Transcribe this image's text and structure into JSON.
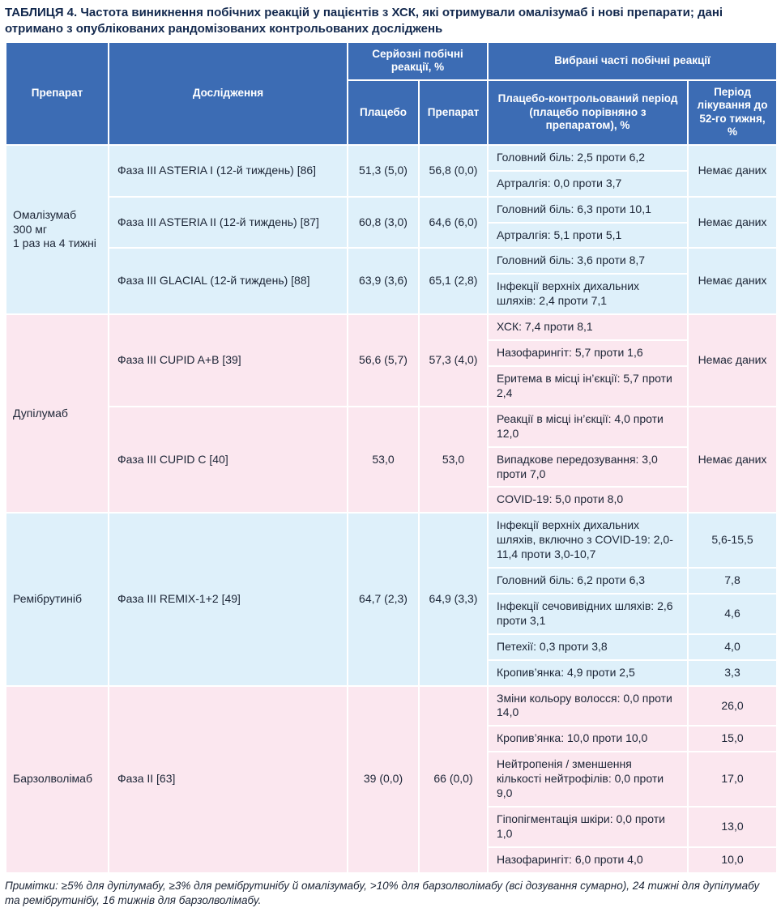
{
  "title": "ТАБЛИЦЯ 4. Частота виникнення побічних реакцій у пацієнтів з ХСК, які отримували омалізумаб і нові препарати; дані отримано з опублікованих рандомізованих контрольованих досліджень",
  "notes": "Примітки: ≥5% для дупілумабу, ≥3% для ремібрутинібу й омалізумабу, >10% для барзолволімабу (всі дозування сумарно), 24 тижні для дупілумабу та ремібрутинібу, 16 тижнів для барзолволімабу.",
  "colors": {
    "header_bg": "#3c6cb4",
    "row_blue": "#def0fa",
    "row_pink": "#fbe7ef",
    "title_text": "#13294e"
  },
  "header": {
    "drug": "Препарат",
    "study": "Дослідження",
    "serious": "Серйозні побічні реакції, %",
    "placebo": "Плацебо",
    "drug_value": "Препарат",
    "selected": "Вибрані часті побічні реакції",
    "placebo_period": "Плацебо-контрольований період (плацебо порівняно з препаратом), %",
    "treatment_period": "Період лікування до 52-го тижня, %"
  },
  "groups": [
    {
      "drug": "Омалізумаб\n300 мг\n1 раз на 4 тижні",
      "tint": "blue",
      "studies": [
        {
          "study": "Фаза III ASTERIA I (12-й тиждень) [86]",
          "placebo": "51,3 (5,0)",
          "drug": "56,8 (0,0)",
          "events": [
            {
              "text": "Головний біль: 2,5 проти 6,2"
            },
            {
              "text": "Артралгія: 0,0 проти 3,7"
            }
          ],
          "shared_period": "Немає даних"
        },
        {
          "study": "Фаза III ASTERIA II (12-й тиждень) [87]",
          "placebo": "60,8 (3,0)",
          "drug": "64,6 (6,0)",
          "events": [
            {
              "text": "Головний біль: 6,3 проти 10,1"
            },
            {
              "text": "Артралгія: 5,1 проти 5,1"
            }
          ],
          "shared_period": "Немає даних"
        },
        {
          "study": "Фаза III GLACIAL (12-й тиждень) [88]",
          "placebo": "63,9 (3,6)",
          "drug": "65,1 (2,8)",
          "events": [
            {
              "text": "Головний біль: 3,6 проти 8,7"
            },
            {
              "text": "Інфекції верхніх дихальних шляхів: 2,4 проти 7,1"
            }
          ],
          "shared_period": "Немає даних"
        }
      ]
    },
    {
      "drug": "Дупілумаб",
      "tint": "pink",
      "studies": [
        {
          "study": "Фаза III CUPID A+B [39]",
          "placebo": "56,6 (5,7)",
          "drug": "57,3 (4,0)",
          "events": [
            {
              "text": "ХСК: 7,4 проти 8,1"
            },
            {
              "text": "Назофарингіт: 5,7 проти 1,6"
            },
            {
              "text": "Еритема в місці ін’єкції: 5,7 проти 2,4"
            }
          ],
          "shared_period": "Немає даних"
        },
        {
          "study": "Фаза III CUPID C [40]",
          "placebo": "53,0",
          "drug": "53,0",
          "events": [
            {
              "text": "Реакції в місці ін’єкції: 4,0 проти 12,0"
            },
            {
              "text": "Випадкове передозування: 3,0 проти 7,0"
            },
            {
              "text": "COVID-19: 5,0 проти 8,0"
            }
          ],
          "shared_period": "Немає даних"
        }
      ]
    },
    {
      "drug": "Ремібрутиніб",
      "tint": "blue",
      "studies": [
        {
          "study": "Фаза III REMIX-1+2 [49]",
          "placebo": "64,7 (2,3)",
          "drug": "64,9 (3,3)",
          "events": [
            {
              "text": "Інфекції верхніх дихальних шляхів, включно з COVID-19: 2,0-11,4 проти 3,0-10,7",
              "period": "5,6-15,5"
            },
            {
              "text": "Головний біль: 6,2 проти 6,3",
              "period": "7,8"
            },
            {
              "text": "Інфекції сечовивідних шляхів: 2,6 проти 3,1",
              "period": "4,6"
            },
            {
              "text": "Петехії: 0,3 проти 3,8",
              "period": "4,0"
            },
            {
              "text": "Кропив’янка: 4,9 проти 2,5",
              "period": "3,3"
            }
          ]
        }
      ]
    },
    {
      "drug": "Барзолволімаб",
      "tint": "pink",
      "studies": [
        {
          "study": "Фаза II [63]",
          "placebo": "39 (0,0)",
          "drug": "66 (0,0)",
          "events": [
            {
              "text": "Зміни кольору волосся: 0,0 проти 14,0",
              "period": "26,0"
            },
            {
              "text": "Кропив’янка: 10,0 проти 10,0",
              "period": "15,0"
            },
            {
              "text": "Нейтропенія / зменшення кількості нейтрофілів: 0,0 проти 9,0",
              "period": "17,0"
            },
            {
              "text": "Гіпопігментація шкіри: 0,0 проти 1,0",
              "period": "13,0"
            },
            {
              "text": "Назофарингіт: 6,0 проти 4,0",
              "period": "10,0"
            }
          ]
        }
      ]
    }
  ]
}
